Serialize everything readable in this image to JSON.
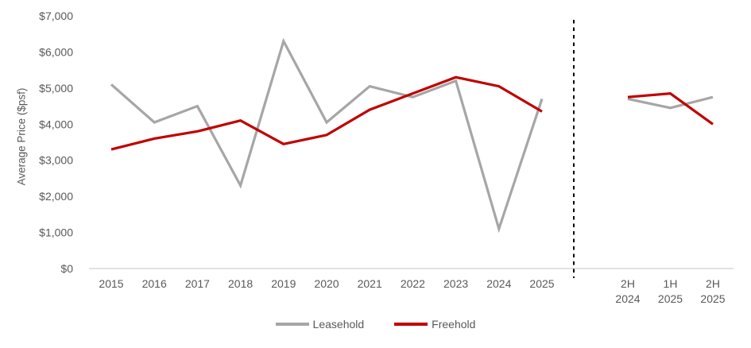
{
  "chart_data": {
    "type": "line",
    "title": "",
    "xlabel": "",
    "ylabel": "Average Price ($psf)",
    "ylim": [
      0,
      7000
    ],
    "y_tick_step": 1000,
    "y_tick_labels": [
      "$0",
      "$1,000",
      "$2,000",
      "$3,000",
      "$4,000",
      "$5,000",
      "$6,000",
      "$7,000"
    ],
    "grid": false,
    "legend_position": "bottom",
    "axis_color": "#D9D9D9",
    "text_color": "#595959",
    "divider": {
      "style": "dashed",
      "color": "#000000"
    },
    "sections": [
      {
        "name": "annual",
        "categories": [
          "2015",
          "2016",
          "2017",
          "2018",
          "2019",
          "2020",
          "2021",
          "2022",
          "2023",
          "2024",
          "2025"
        ],
        "series": [
          {
            "name": "Leasehold",
            "color": "#A6A6A6",
            "values": [
              5100,
              4050,
              4500,
              2300,
              6300,
              4050,
              5050,
              4750,
              5200,
              1100,
              4700
            ]
          },
          {
            "name": "Freehold",
            "color": "#C00000",
            "values": [
              3300,
              3600,
              3800,
              4100,
              3450,
              3700,
              4400,
              4850,
              5300,
              5050,
              4350
            ]
          }
        ]
      },
      {
        "name": "half-year",
        "categories": [
          "2H\n2024",
          "1H\n2025",
          "2H\n2025"
        ],
        "series": [
          {
            "name": "Leasehold",
            "color": "#A6A6A6",
            "values": [
              4700,
              4450,
              4750
            ]
          },
          {
            "name": "Freehold",
            "color": "#C00000",
            "values": [
              4750,
              4850,
              4000
            ]
          }
        ]
      }
    ],
    "legend": [
      {
        "label": "Leasehold",
        "color": "#A6A6A6"
      },
      {
        "label": "Freehold",
        "color": "#C00000"
      }
    ]
  }
}
